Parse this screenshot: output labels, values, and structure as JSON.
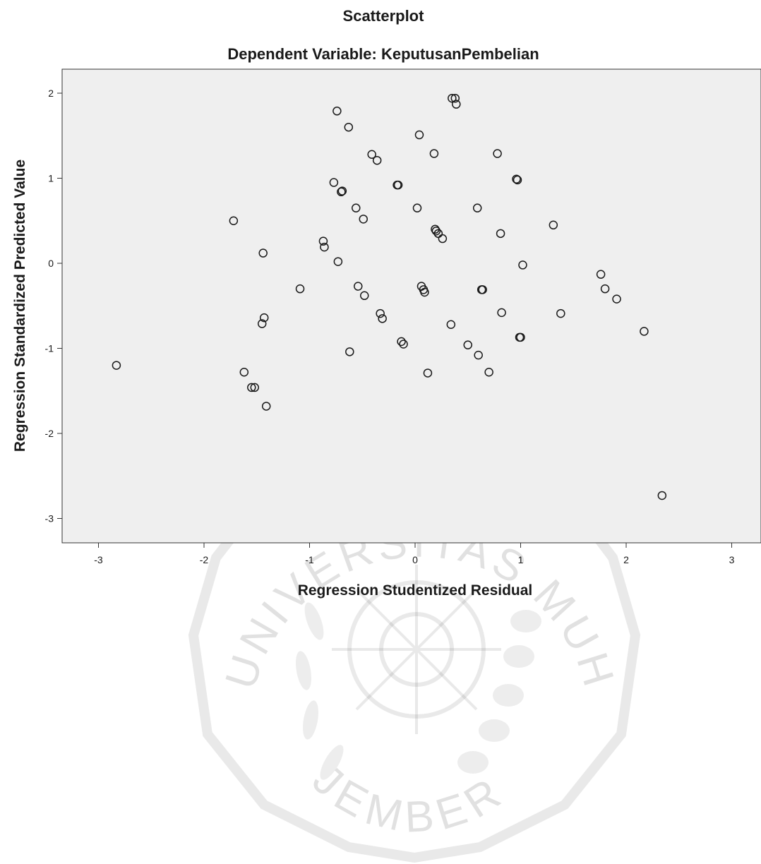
{
  "chart_data": {
    "type": "scatter",
    "title": "Scatterplot",
    "subtitle": "Dependent Variable: KeputusanPembelian",
    "xlabel": "Regression Studentized Residual",
    "ylabel": "Regression Standardized Predicted Value",
    "xlim": [
      -3.15,
      3.3
    ],
    "ylim": [
      -3.3,
      2.3
    ],
    "xticks": [
      -3,
      -2,
      -1,
      0,
      1,
      2,
      3
    ],
    "yticks": [
      2,
      1,
      0,
      -1,
      -2,
      -3
    ],
    "plot_background": "#efefef",
    "marker": "open-circle",
    "x": [
      -2.83,
      -1.72,
      -1.62,
      -1.55,
      -1.52,
      -1.45,
      -1.44,
      -1.43,
      -1.41,
      -1.09,
      -0.87,
      -0.86,
      -0.77,
      -0.74,
      -0.73,
      -0.7,
      -0.69,
      -0.63,
      -0.62,
      -0.56,
      -0.54,
      -0.49,
      -0.48,
      -0.41,
      -0.36,
      -0.33,
      -0.31,
      -0.17,
      -0.16,
      -0.13,
      -0.11,
      0.02,
      0.04,
      0.06,
      0.08,
      0.09,
      0.12,
      0.18,
      0.19,
      0.2,
      0.22,
      0.26,
      0.34,
      0.35,
      0.38,
      0.39,
      0.5,
      0.59,
      0.6,
      0.63,
      0.64,
      0.7,
      0.78,
      0.81,
      0.82,
      0.96,
      0.97,
      0.99,
      1.0,
      1.02,
      1.31,
      1.38,
      1.76,
      1.8,
      1.91,
      2.17,
      2.34
    ],
    "y": [
      -1.2,
      0.5,
      -1.28,
      -1.46,
      -1.46,
      -0.71,
      0.12,
      -0.64,
      -1.68,
      -0.3,
      0.26,
      0.19,
      0.95,
      1.79,
      0.02,
      0.84,
      0.85,
      1.6,
      -1.04,
      0.65,
      -0.27,
      0.52,
      -0.38,
      1.28,
      1.21,
      -0.59,
      -0.65,
      0.92,
      0.92,
      -0.92,
      -0.95,
      0.65,
      1.51,
      -0.27,
      -0.31,
      -0.34,
      -1.29,
      1.29,
      0.4,
      0.38,
      0.35,
      0.29,
      -0.72,
      1.94,
      1.94,
      1.87,
      -0.96,
      0.65,
      -1.08,
      -0.31,
      -0.31,
      -1.28,
      1.29,
      0.35,
      -0.58,
      0.99,
      0.98,
      -0.87,
      -0.87,
      -0.02,
      0.45,
      -0.59,
      -0.13,
      -0.3,
      -0.42,
      -0.8,
      -2.73
    ]
  },
  "watermark": {
    "top_text": "UNIVERSITAS MUHAMMADIYAH",
    "bottom_text": "JEMBER"
  }
}
